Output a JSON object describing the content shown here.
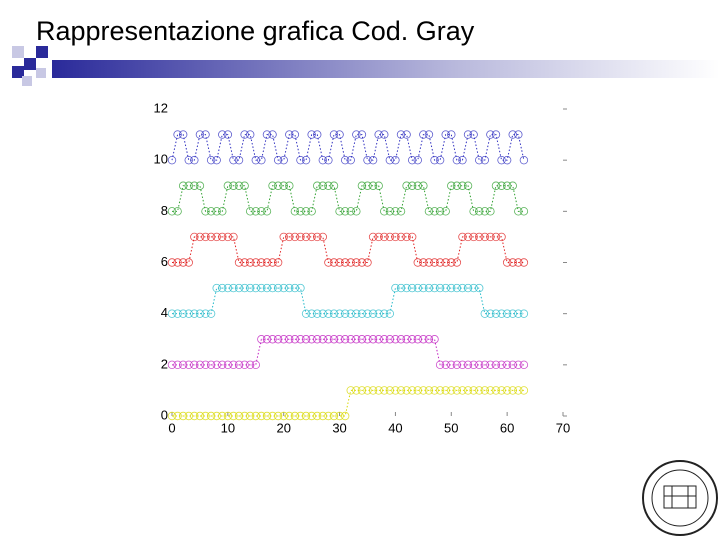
{
  "header": {
    "title": "Rappresentazione grafica Cod. Gray"
  },
  "chart_data": {
    "type": "line",
    "x": [
      0,
      1,
      2,
      3,
      4,
      5,
      6,
      7,
      8,
      9,
      10,
      11,
      12,
      13,
      14,
      15,
      16,
      17,
      18,
      19,
      20,
      21,
      22,
      23,
      24,
      25,
      26,
      27,
      28,
      29,
      30,
      31,
      32,
      33,
      34,
      35,
      36,
      37,
      38,
      39,
      40,
      41,
      42,
      43,
      44,
      45,
      46,
      47,
      48,
      49,
      50,
      51,
      52,
      53,
      54,
      55,
      56,
      57,
      58,
      59,
      60,
      61,
      62,
      63
    ],
    "series": [
      {
        "color": "#d8d800",
        "values": [
          0,
          0,
          0,
          0,
          0,
          0,
          0,
          0,
          0,
          0,
          0,
          0,
          0,
          0,
          0,
          0,
          0,
          0,
          0,
          0,
          0,
          0,
          0,
          0,
          0,
          0,
          0,
          0,
          0,
          0,
          0,
          0,
          1,
          1,
          1,
          1,
          1,
          1,
          1,
          1,
          1,
          1,
          1,
          1,
          1,
          1,
          1,
          1,
          1,
          1,
          1,
          1,
          1,
          1,
          1,
          1,
          1,
          1,
          1,
          1,
          1,
          1,
          1,
          1
        ]
      },
      {
        "color": "#c020c0",
        "values": [
          2,
          2,
          2,
          2,
          2,
          2,
          2,
          2,
          2,
          2,
          2,
          2,
          2,
          2,
          2,
          2,
          3,
          3,
          3,
          3,
          3,
          3,
          3,
          3,
          3,
          3,
          3,
          3,
          3,
          3,
          3,
          3,
          3,
          3,
          3,
          3,
          3,
          3,
          3,
          3,
          3,
          3,
          3,
          3,
          3,
          3,
          3,
          3,
          2,
          2,
          2,
          2,
          2,
          2,
          2,
          2,
          2,
          2,
          2,
          2,
          2,
          2,
          2,
          2
        ]
      },
      {
        "color": "#20b8c8",
        "values": [
          4,
          4,
          4,
          4,
          4,
          4,
          4,
          4,
          5,
          5,
          5,
          5,
          5,
          5,
          5,
          5,
          5,
          5,
          5,
          5,
          5,
          5,
          5,
          5,
          4,
          4,
          4,
          4,
          4,
          4,
          4,
          4,
          4,
          4,
          4,
          4,
          4,
          4,
          4,
          4,
          5,
          5,
          5,
          5,
          5,
          5,
          5,
          5,
          5,
          5,
          5,
          5,
          5,
          5,
          5,
          5,
          4,
          4,
          4,
          4,
          4,
          4,
          4,
          4
        ]
      },
      {
        "color": "#e02020",
        "values": [
          6,
          6,
          6,
          6,
          7,
          7,
          7,
          7,
          7,
          7,
          7,
          7,
          6,
          6,
          6,
          6,
          6,
          6,
          6,
          6,
          7,
          7,
          7,
          7,
          7,
          7,
          7,
          7,
          6,
          6,
          6,
          6,
          6,
          6,
          6,
          6,
          7,
          7,
          7,
          7,
          7,
          7,
          7,
          7,
          6,
          6,
          6,
          6,
          6,
          6,
          6,
          6,
          7,
          7,
          7,
          7,
          7,
          7,
          7,
          7,
          6,
          6,
          6,
          6
        ]
      },
      {
        "color": "#30a030",
        "values": [
          8,
          8,
          9,
          9,
          9,
          9,
          8,
          8,
          8,
          8,
          9,
          9,
          9,
          9,
          8,
          8,
          8,
          8,
          9,
          9,
          9,
          9,
          8,
          8,
          8,
          8,
          9,
          9,
          9,
          9,
          8,
          8,
          8,
          8,
          9,
          9,
          9,
          9,
          8,
          8,
          8,
          8,
          9,
          9,
          9,
          9,
          8,
          8,
          8,
          8,
          9,
          9,
          9,
          9,
          8,
          8,
          8,
          8,
          9,
          9,
          9,
          9,
          8,
          8
        ]
      },
      {
        "color": "#3030c0",
        "values": [
          10,
          11,
          11,
          10,
          10,
          11,
          11,
          10,
          10,
          11,
          11,
          10,
          10,
          11,
          11,
          10,
          10,
          11,
          11,
          10,
          10,
          11,
          11,
          10,
          10,
          11,
          11,
          10,
          10,
          11,
          11,
          10,
          10,
          11,
          11,
          10,
          10,
          11,
          11,
          10,
          10,
          11,
          11,
          10,
          10,
          11,
          11,
          10,
          10,
          11,
          11,
          10,
          10,
          11,
          11,
          10,
          10,
          11,
          11,
          10,
          10,
          11,
          11,
          10
        ]
      }
    ],
    "xlim": [
      0,
      70
    ],
    "xticks": [
      0,
      10,
      20,
      30,
      40,
      50,
      60,
      70
    ],
    "ylim": [
      0,
      12
    ],
    "yticks": [
      0,
      2,
      4,
      6,
      8,
      10,
      12
    ]
  }
}
